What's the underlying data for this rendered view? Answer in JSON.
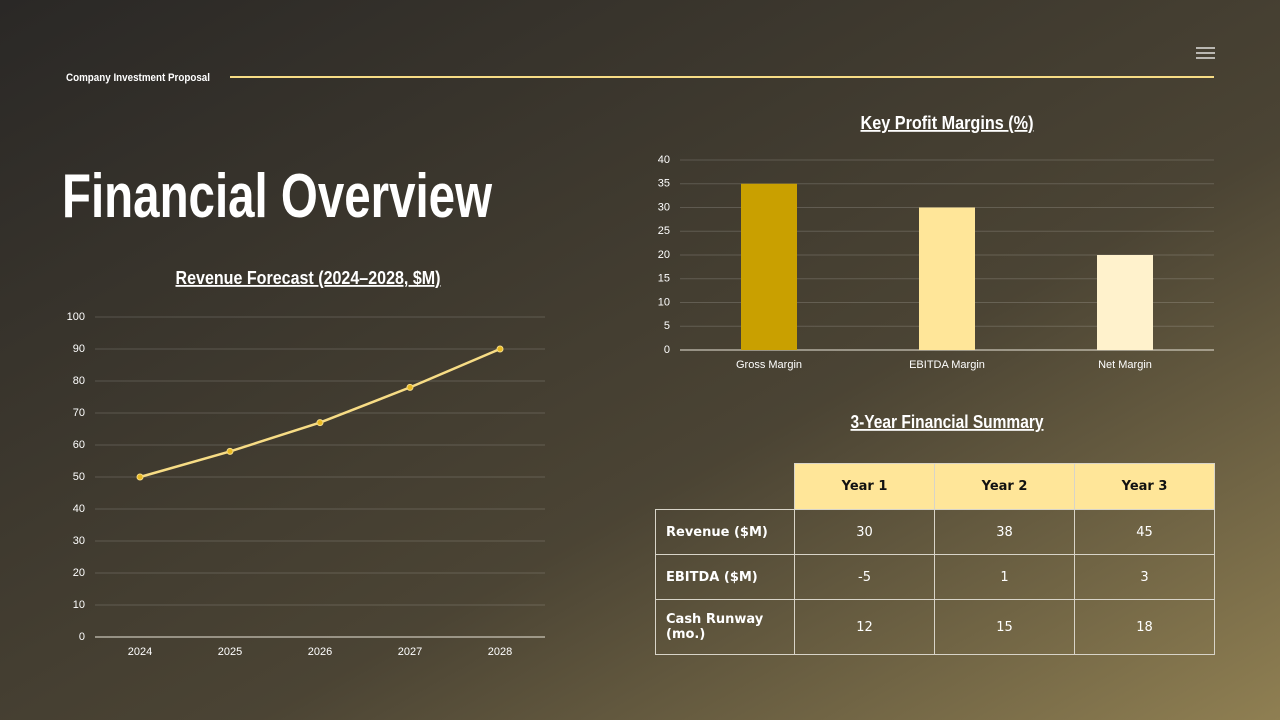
{
  "header": {
    "title": "Company Investment Proposal"
  },
  "title": "Financial Overview",
  "chart_data": [
    {
      "type": "line",
      "title": "Revenue Forecast (2024–2028, $M)",
      "categories": [
        "2024",
        "2025",
        "2026",
        "2027",
        "2028"
      ],
      "values": [
        50,
        58,
        67,
        78,
        90
      ],
      "color": "#f7dc85",
      "marker_color": "#e8b923",
      "ylim": [
        0,
        100
      ],
      "yticks": [
        0,
        10,
        20,
        30,
        40,
        50,
        60,
        70,
        80,
        90,
        100
      ],
      "grid": true
    },
    {
      "type": "bar",
      "title": "Key Profit Margins (%)",
      "categories": [
        "Gross Margin",
        "EBITDA Margin",
        "Net Margin"
      ],
      "values": [
        35,
        30,
        20
      ],
      "colors": [
        "#c9a000",
        "#ffe699",
        "#fff2cc"
      ],
      "ylim": [
        0,
        40
      ],
      "yticks": [
        0,
        5,
        10,
        15,
        20,
        25,
        30,
        35,
        40
      ],
      "grid": true
    }
  ],
  "table": {
    "title": "3-Year Financial Summary",
    "columns": [
      "Year 1",
      "Year 2",
      "Year 3"
    ],
    "rows": [
      {
        "label": "Revenue ($M)",
        "values": [
          30,
          38,
          45
        ]
      },
      {
        "label": "EBITDA ($M)",
        "values": [
          -5,
          1,
          3
        ]
      },
      {
        "label": "Cash Runway (mo.)",
        "values": [
          12,
          15,
          18
        ]
      }
    ]
  }
}
